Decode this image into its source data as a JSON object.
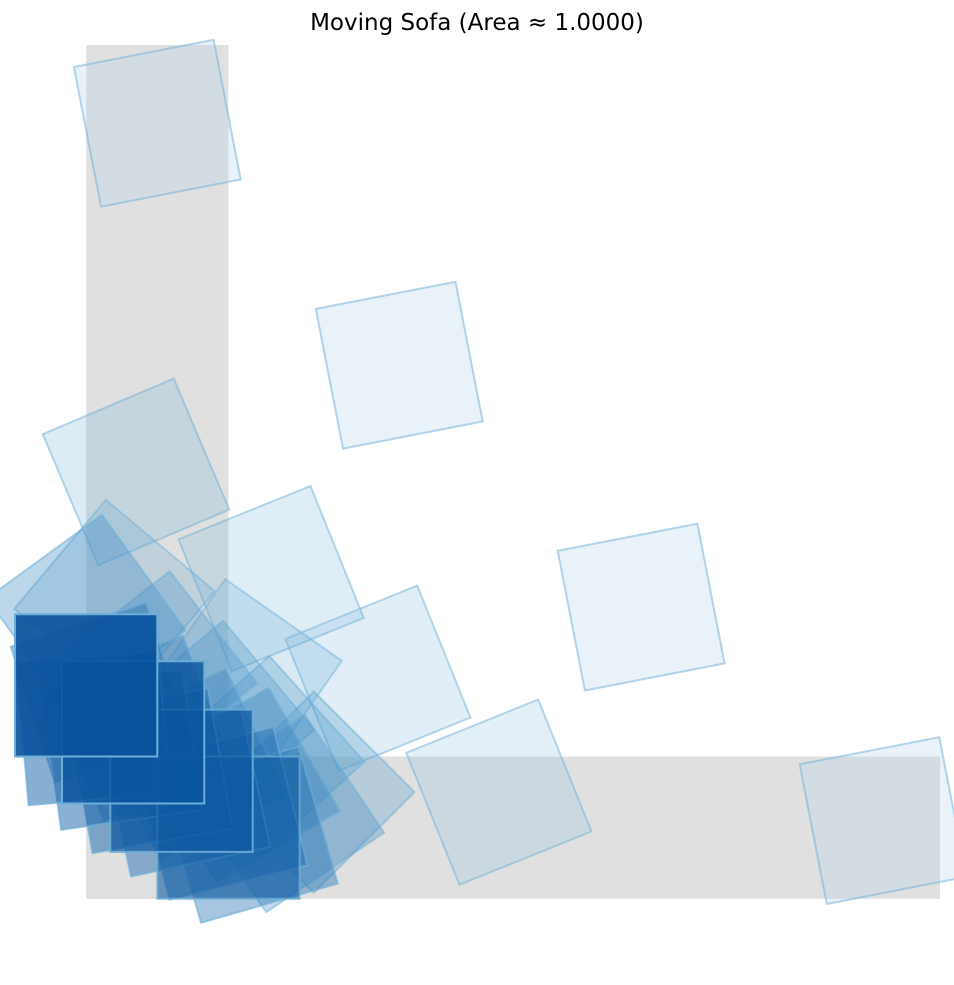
{
  "chart_data": {
    "type": "polygon",
    "title": "Moving Sofa (Area ≈ 1.0000)",
    "xlabel": "",
    "ylabel": "",
    "xlim": [
      -0.5,
      6.0
    ],
    "ylim": [
      -0.5,
      6.0
    ],
    "axis_visible": false,
    "grid": false,
    "hallway": {
      "color": "#e0e0e0",
      "rects": [
        {
          "x": [
            0,
            1
          ],
          "y": [
            0,
            6
          ]
        },
        {
          "x": [
            0,
            6
          ],
          "y": [
            0,
            1
          ]
        }
      ]
    },
    "sofa_positions": {
      "colormap": [
        "#c6dbef",
        "#6baed6",
        "#2171b5",
        "#08519c"
      ],
      "stroke": "#6baed6",
      "side": 1,
      "items": [
        {
          "cx": 0.0,
          "cy": 1.5,
          "angle": 0,
          "alpha": 0.9,
          "t": 1.0
        },
        {
          "cx": 0.33,
          "cy": 1.17,
          "angle": 0,
          "alpha": 0.8,
          "t": 0.97
        },
        {
          "cx": 0.67,
          "cy": 0.83,
          "angle": 0,
          "alpha": 0.7,
          "t": 0.94
        },
        {
          "cx": 1.0,
          "cy": 0.5,
          "angle": 0,
          "alpha": 0.6,
          "t": 0.9
        },
        {
          "cx": 0.05,
          "cy": 1.2,
          "angle": 5,
          "alpha": 0.5,
          "t": 0.86
        },
        {
          "cx": 0.25,
          "cy": 1.05,
          "angle": 8,
          "alpha": 0.5,
          "t": 0.83
        },
        {
          "cx": 0.45,
          "cy": 0.9,
          "angle": 10,
          "alpha": 0.5,
          "t": 0.8
        },
        {
          "cx": 0.7,
          "cy": 0.75,
          "angle": 12,
          "alpha": 0.45,
          "t": 0.77
        },
        {
          "cx": 0.95,
          "cy": 0.6,
          "angle": 14,
          "alpha": 0.45,
          "t": 0.74
        },
        {
          "cx": 1.15,
          "cy": 0.45,
          "angle": 16,
          "alpha": 0.4,
          "t": 0.71
        },
        {
          "cx": 0.1,
          "cy": 1.45,
          "angle": 18,
          "alpha": 0.4,
          "t": 0.68
        },
        {
          "cx": 0.4,
          "cy": 1.2,
          "angle": 22,
          "alpha": 0.4,
          "t": 0.65
        },
        {
          "cx": 0.75,
          "cy": 0.95,
          "angle": 26,
          "alpha": 0.35,
          "t": 0.62
        },
        {
          "cx": 1.1,
          "cy": 0.8,
          "angle": 30,
          "alpha": 0.35,
          "t": 0.59
        },
        {
          "cx": 1.4,
          "cy": 0.6,
          "angle": 34,
          "alpha": 0.3,
          "t": 0.56
        },
        {
          "cx": 0.0,
          "cy": 2.0,
          "angle": 36,
          "alpha": 0.35,
          "t": 0.53
        },
        {
          "cx": 0.5,
          "cy": 1.6,
          "angle": 38,
          "alpha": 0.3,
          "t": 0.5
        },
        {
          "cx": 0.9,
          "cy": 1.25,
          "angle": 40,
          "alpha": 0.3,
          "t": 0.47
        },
        {
          "cx": 1.25,
          "cy": 1.0,
          "angle": 42,
          "alpha": 0.3,
          "t": 0.44
        },
        {
          "cx": 1.6,
          "cy": 0.75,
          "angle": 45,
          "alpha": 0.3,
          "t": 0.41
        },
        {
          "cx": 0.2,
          "cy": 2.1,
          "angle": 50,
          "alpha": 0.25,
          "t": 0.38
        },
        {
          "cx": 1.1,
          "cy": 1.55,
          "angle": 55,
          "alpha": 0.25,
          "t": 0.35
        },
        {
          "cx": 0.35,
          "cy": 3.0,
          "angle": 23,
          "alpha": 0.28,
          "t": 0.25
        },
        {
          "cx": 1.3,
          "cy": 2.25,
          "angle": 22,
          "alpha": 0.28,
          "t": 0.22
        },
        {
          "cx": 2.05,
          "cy": 1.55,
          "angle": 22,
          "alpha": 0.28,
          "t": 0.19
        },
        {
          "cx": 2.9,
          "cy": 0.75,
          "angle": 22,
          "alpha": 0.28,
          "t": 0.16
        },
        {
          "cx": 0.5,
          "cy": 5.45,
          "angle": 11,
          "alpha": 0.3,
          "t": 0.05
        },
        {
          "cx": 2.2,
          "cy": 3.75,
          "angle": 11,
          "alpha": 0.3,
          "t": 0.05
        },
        {
          "cx": 3.9,
          "cy": 2.05,
          "angle": 11,
          "alpha": 0.3,
          "t": 0.05
        },
        {
          "cx": 5.6,
          "cy": 0.55,
          "angle": 11,
          "alpha": 0.3,
          "t": 0.05
        }
      ]
    }
  }
}
